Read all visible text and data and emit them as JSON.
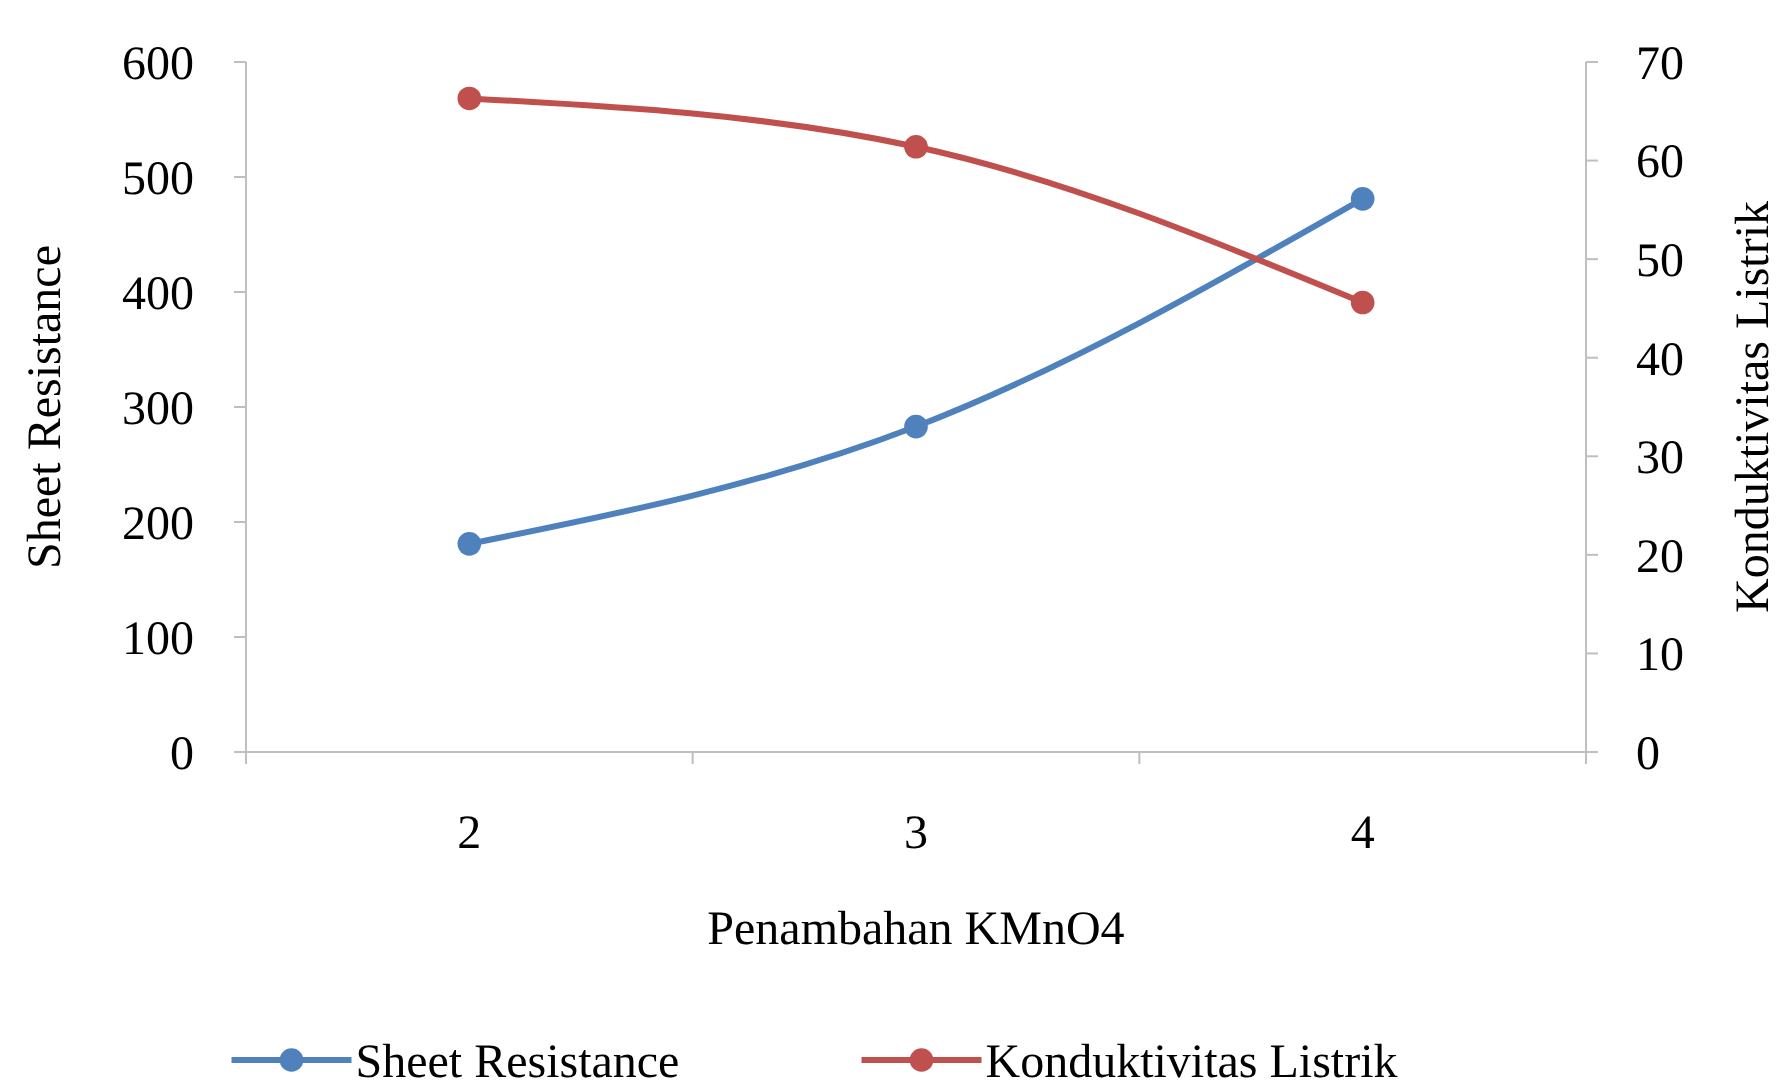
{
  "chart_data": {
    "type": "line",
    "xlabel": "Penambahan KMnO4",
    "ylabel": "Sheet Resistance",
    "y2label": "Konduktivitas Listrik",
    "categories": [
      "2",
      "3",
      "4"
    ],
    "series": [
      {
        "name": "Sheet Resistance",
        "color": "#4f81bd",
        "values": [
          181,
          283,
          481
        ]
      },
      {
        "name": "Konduktivitas Listrik",
        "color": "#c0504d",
        "values": [
          66.3,
          61.4,
          45.6
        ],
        "axis": "y2"
      }
    ],
    "ylim": [
      0,
      600
    ],
    "yticks": [
      0,
      100,
      200,
      300,
      400,
      500,
      600
    ],
    "y2lim": [
      0,
      70
    ],
    "y2ticks": [
      0,
      10,
      20,
      30,
      40,
      50,
      60,
      70
    ],
    "grid": false,
    "legend": "bottom",
    "marker": "circle",
    "line_style": "solid"
  }
}
